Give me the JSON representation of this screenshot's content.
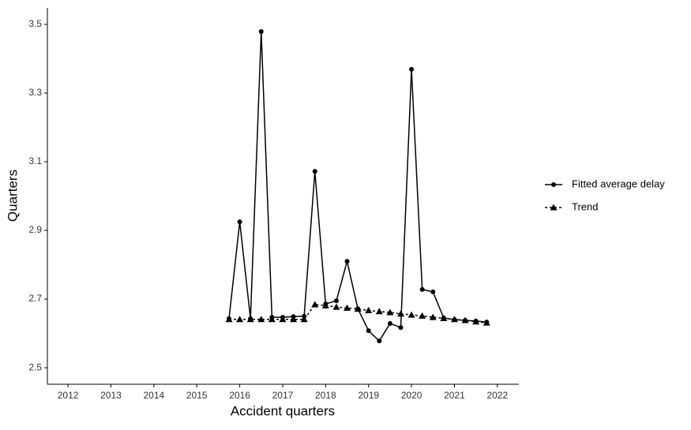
{
  "chart_data": {
    "type": "line",
    "x_label": "Accident quarters",
    "y_label": "Quarters",
    "x": [
      2015.75,
      2016.0,
      2016.25,
      2016.5,
      2016.75,
      2017.0,
      2017.25,
      2017.5,
      2017.75,
      2018.0,
      2018.25,
      2018.5,
      2018.75,
      2019.0,
      2019.25,
      2019.5,
      2019.75,
      2020.0,
      2020.25,
      2020.5,
      2020.75,
      2021.0,
      2021.25,
      2021.5,
      2021.75
    ],
    "series": [
      {
        "name": "Fitted average delay",
        "color": "#000000",
        "marker": "circle",
        "dashed": false,
        "values": [
          2.643,
          2.925,
          2.643,
          3.479,
          2.647,
          2.647,
          2.649,
          2.65,
          3.072,
          2.686,
          2.695,
          2.81,
          2.672,
          2.608,
          2.578,
          2.629,
          2.617,
          3.369,
          2.728,
          2.721,
          2.645,
          2.64,
          2.638,
          2.636,
          2.633
        ]
      },
      {
        "name": "Trend",
        "color": "#000000",
        "marker": "triangle",
        "dashed": true,
        "values": [
          2.641,
          2.641,
          2.641,
          2.641,
          2.641,
          2.641,
          2.641,
          2.641,
          2.684,
          2.681,
          2.677,
          2.674,
          2.671,
          2.667,
          2.664,
          2.661,
          2.657,
          2.654,
          2.651,
          2.647,
          2.644,
          2.641,
          2.638,
          2.634,
          2.631
        ]
      }
    ],
    "xlim": [
      2011.52,
      2022.5
    ],
    "xticks": [
      2012,
      2013,
      2014,
      2015,
      2016,
      2017,
      2018,
      2019,
      2020,
      2021,
      2022
    ],
    "ylim": [
      2.452,
      3.548
    ],
    "yticks": [
      2.5,
      2.7,
      2.9,
      3.1,
      3.3,
      3.5
    ],
    "grid": false,
    "legend": "right"
  }
}
